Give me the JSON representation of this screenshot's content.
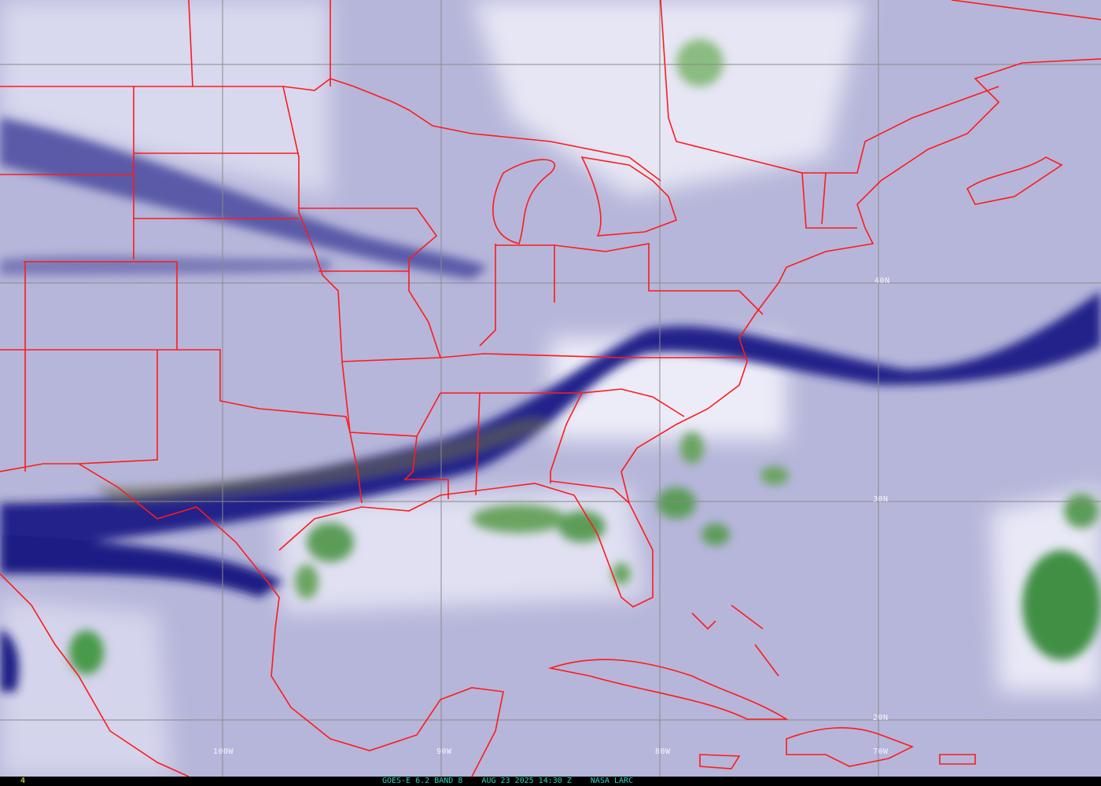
{
  "image": {
    "satellite": "GOES-E",
    "channel": "6.2",
    "band": "BAND 8",
    "caption": "GOES-E 6.2 BAND 8    AUG 23 2025 14:30 Z    NASA LARC",
    "frame_number": "4",
    "colors": {
      "border_lines": "#ff1a1a",
      "grid": "#888888",
      "dry": "#1a1a80",
      "moist": "#f0f0fa",
      "cold_tops": "#3a8a3a",
      "caption_text": "#22d8c0",
      "frame_text": "#ffff33"
    }
  },
  "grid_labels": {
    "lat": [
      "40N",
      "30N",
      "20N"
    ],
    "lon": [
      "100W",
      "90W",
      "80W",
      "70W"
    ]
  }
}
